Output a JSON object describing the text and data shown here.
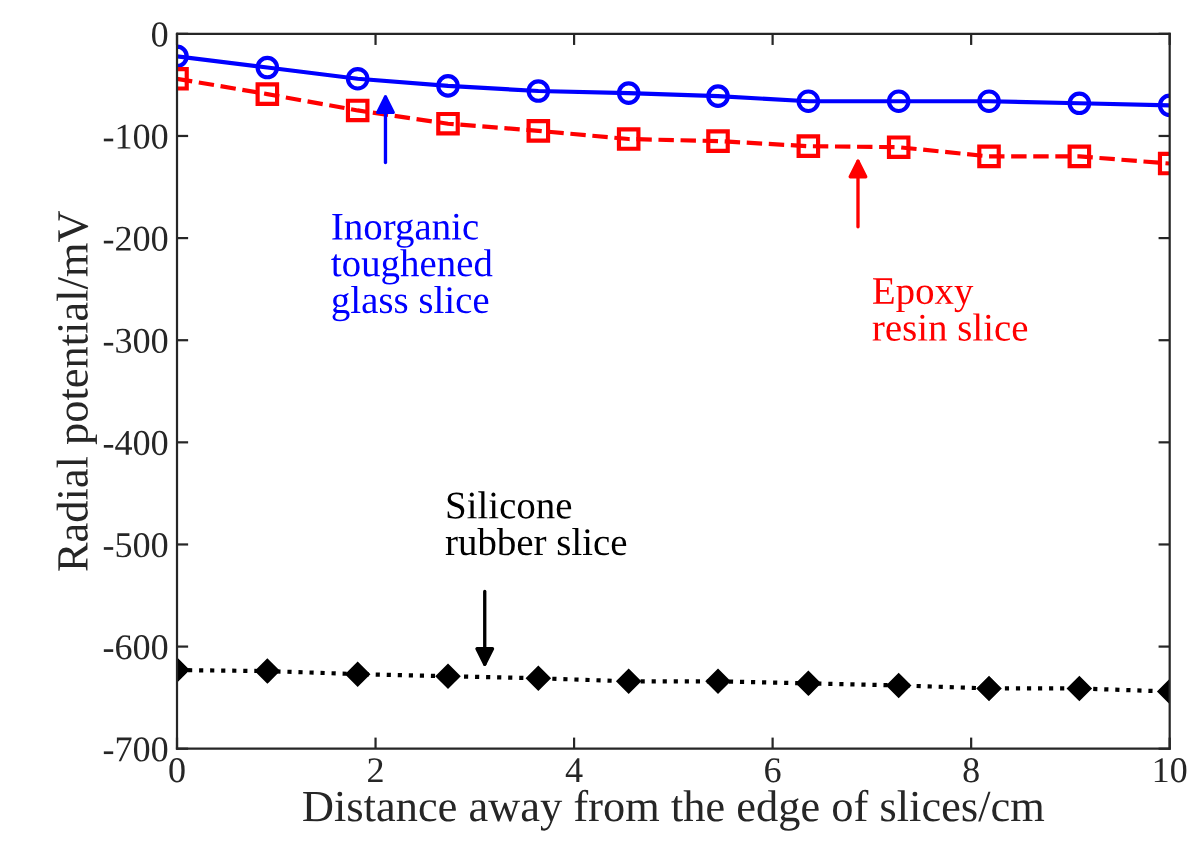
{
  "chart_data": {
    "type": "line",
    "xlabel": "Distance away from the edge of slices/cm",
    "ylabel": "Radial potential/mV",
    "x": [
      0,
      0.91,
      1.82,
      2.73,
      3.64,
      4.55,
      5.45,
      6.36,
      7.27,
      8.18,
      9.09,
      10
    ],
    "series": [
      {
        "color": "#0000ff",
        "marker": "circle",
        "line_style": "solid",
        "values": [
          -22,
          -33,
          -44,
          -51,
          -56,
          -58,
          -61,
          -66,
          -66,
          -66,
          -68,
          -70
        ]
      },
      {
        "color": "#ff0000",
        "marker": "square",
        "line_style": "dashed",
        "values": [
          -44,
          -59,
          -75,
          -88,
          -95,
          -103,
          -105,
          -110,
          -111,
          -120,
          -120,
          -127
        ]
      },
      {
        "color": "#000000",
        "marker": "diamond",
        "line_style": "dotted",
        "values": [
          -623,
          -624,
          -627,
          -629,
          -631,
          -634,
          -634,
          -636,
          -638,
          -641,
          -641,
          -644
        ]
      }
    ],
    "annotations": [
      "Inorganic\ntoughened\nglass slice",
      "Epoxy\nresin slice",
      "Silicone\nrubber slice"
    ],
    "xlim": [
      0,
      10
    ],
    "xticks": [
      0,
      2,
      4,
      6,
      8,
      10
    ],
    "ylim": [
      -700,
      0
    ],
    "yticks": [
      -700,
      -600,
      -500,
      -400,
      -300,
      -200,
      -100,
      0
    ],
    "grid": false,
    "legend": false
  }
}
